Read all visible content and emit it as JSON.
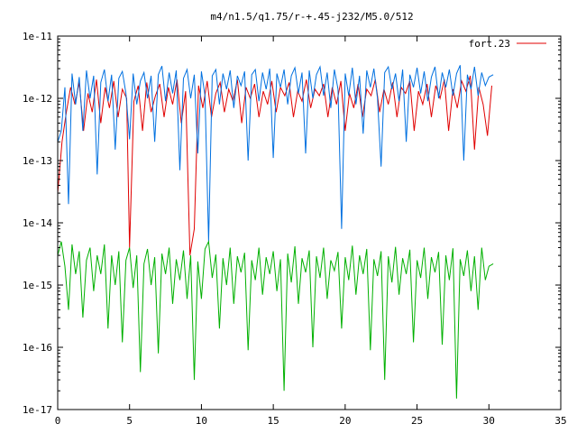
{
  "chart_data": {
    "type": "line",
    "title": "m4/n1.5/q1.75/r-+.45-j232/M5.0/512",
    "xlabel": "",
    "ylabel": "",
    "xlim": [
      0,
      35
    ],
    "ylim": [
      1e-17,
      1e-11
    ],
    "yscale": "log",
    "grid": false,
    "legend": "top-right",
    "x_ticks": [
      0,
      5,
      10,
      15,
      20,
      25,
      30,
      35
    ],
    "x_tick_labels": [
      "0",
      "5",
      "10",
      "15",
      "20",
      "25",
      "30",
      "35"
    ],
    "y_ticks": [
      1e-17,
      1e-16,
      1e-15,
      1e-14,
      1e-13,
      1e-12,
      1e-11
    ],
    "y_tick_labels": [
      "1e-17",
      "1e-16",
      "1e-15",
      "1e-14",
      "1e-13",
      "1e-12",
      "1e-11"
    ],
    "series": [
      {
        "name": "fort.23",
        "color": "#e00000",
        "x": [
          0,
          0.3,
          0.6,
          0.9,
          1.2,
          1.5,
          1.8,
          2.1,
          2.4,
          2.7,
          3.0,
          3.3,
          3.6,
          3.9,
          4.2,
          4.5,
          4.8,
          5.0,
          5.3,
          5.6,
          5.9,
          6.2,
          6.5,
          6.8,
          7.1,
          7.4,
          7.7,
          8.0,
          8.3,
          8.6,
          8.9,
          9.2,
          9.5,
          9.8,
          10.1,
          10.4,
          10.7,
          11.0,
          11.3,
          11.6,
          11.9,
          12.2,
          12.5,
          12.8,
          13.1,
          13.4,
          13.7,
          14.0,
          14.3,
          14.6,
          14.9,
          15.2,
          15.5,
          15.8,
          16.1,
          16.4,
          16.7,
          17.0,
          17.3,
          17.6,
          17.9,
          18.2,
          18.5,
          18.8,
          19.1,
          19.4,
          19.7,
          20.0,
          20.3,
          20.6,
          20.9,
          21.2,
          21.5,
          21.8,
          22.1,
          22.4,
          22.7,
          23.0,
          23.3,
          23.6,
          23.9,
          24.2,
          24.5,
          24.8,
          25.1,
          25.4,
          25.7,
          26.0,
          26.3,
          26.6,
          26.9,
          27.2,
          27.5,
          27.8,
          28.1,
          28.4,
          28.7,
          29.0,
          29.3,
          29.6,
          29.9,
          30.2
        ],
        "y": [
          3e-14,
          2e-13,
          6e-13,
          1.5e-12,
          8e-13,
          1.8e-12,
          3e-13,
          1.2e-12,
          6e-13,
          2e-12,
          4e-13,
          1.5e-12,
          7e-13,
          1.9e-12,
          5e-13,
          1.4e-12,
          1e-12,
          4e-15,
          9e-13,
          1.6e-12,
          3e-13,
          1.8e-12,
          6e-13,
          1.1e-12,
          1.7e-12,
          5e-13,
          1.5e-12,
          8e-13,
          2e-12,
          4e-13,
          1.3e-12,
          3e-15,
          8e-15,
          1.6e-12,
          7e-13,
          1.9e-12,
          5e-13,
          1.2e-12,
          1.8e-12,
          6e-13,
          1.4e-12,
          9e-13,
          2e-12,
          4e-13,
          1.5e-12,
          1e-12,
          1.7e-12,
          5e-13,
          1.3e-12,
          8e-13,
          1.9e-12,
          6e-13,
          1.5e-12,
          1.1e-12,
          1.8e-12,
          5e-13,
          1.3e-12,
          9e-13,
          2e-12,
          7e-13,
          1.4e-12,
          1.1e-12,
          1.7e-12,
          5e-13,
          1.5e-12,
          8e-13,
          1.9e-12,
          3e-13,
          1.2e-12,
          7e-13,
          1.7e-12,
          5e-13,
          1.4e-12,
          1.1e-12,
          2e-12,
          6e-13,
          1.4e-12,
          8e-13,
          1.8e-12,
          5e-13,
          1.5e-12,
          1.2e-12,
          1.9e-12,
          3e-13,
          1.3e-12,
          8e-13,
          1.7e-12,
          5e-13,
          1.6e-12,
          1e-12,
          2e-12,
          3e-13,
          1.4e-12,
          7e-13,
          1.9e-12,
          1.3e-12,
          2.3e-12,
          1.5e-13,
          1.5e-12,
          8e-13,
          2.5e-13,
          1.6e-12
        ]
      },
      {
        "name": "",
        "color": "#0070e0",
        "x": [
          0,
          0.25,
          0.5,
          0.75,
          1.0,
          1.25,
          1.5,
          1.75,
          2.0,
          2.25,
          2.5,
          2.75,
          3.0,
          3.25,
          3.5,
          3.75,
          4.0,
          4.25,
          4.5,
          4.75,
          5.0,
          5.25,
          5.5,
          5.75,
          6.0,
          6.25,
          6.5,
          6.75,
          7.0,
          7.25,
          7.5,
          7.75,
          8.0,
          8.25,
          8.5,
          8.75,
          9.0,
          9.25,
          9.5,
          9.75,
          10.0,
          10.25,
          10.5,
          10.75,
          11.0,
          11.25,
          11.5,
          11.75,
          12.0,
          12.25,
          12.5,
          12.75,
          13.0,
          13.25,
          13.5,
          13.75,
          14.0,
          14.25,
          14.5,
          14.75,
          15.0,
          15.25,
          15.5,
          15.75,
          16.0,
          16.25,
          16.5,
          16.75,
          17.0,
          17.25,
          17.5,
          17.75,
          18.0,
          18.25,
          18.5,
          18.75,
          19.0,
          19.25,
          19.5,
          19.75,
          20.0,
          20.25,
          20.5,
          20.75,
          21.0,
          21.25,
          21.5,
          21.75,
          22.0,
          22.25,
          22.5,
          22.75,
          23.0,
          23.25,
          23.5,
          23.75,
          24.0,
          24.25,
          24.5,
          24.75,
          25.0,
          25.25,
          25.5,
          25.75,
          26.0,
          26.25,
          26.5,
          26.75,
          27.0,
          27.25,
          27.5,
          27.75,
          28.0,
          28.25,
          28.5,
          28.75,
          29.0,
          29.25,
          29.5,
          29.75,
          30.0,
          30.3
        ],
        "y": [
          2e-13,
          3e-13,
          1.5e-12,
          2e-14,
          2.5e-12,
          8e-13,
          2.2e-12,
          3e-13,
          2.8e-12,
          1e-12,
          2.3e-12,
          6e-14,
          1.8e-12,
          2.9e-12,
          9e-13,
          2.4e-12,
          1.5e-13,
          2.1e-12,
          2.7e-12,
          1.2e-12,
          2.2e-13,
          2.5e-12,
          8e-13,
          1.9e-12,
          2.6e-12,
          1e-12,
          2.3e-12,
          2e-13,
          2.4e-12,
          3.3e-12,
          9e-13,
          2.6e-12,
          1.2e-12,
          2.8e-12,
          7e-14,
          2.1e-12,
          2.9e-12,
          1e-12,
          2.4e-12,
          1.3e-13,
          2.7e-12,
          1.1e-12,
          5e-15,
          2.3e-12,
          2.9e-12,
          8e-13,
          2.5e-12,
          1.4e-12,
          2.8e-12,
          7e-13,
          2.3e-12,
          1.6e-12,
          2.7e-12,
          1e-13,
          2.4e-12,
          2.9e-12,
          9e-13,
          2.6e-12,
          1.4e-12,
          3e-12,
          1.1e-13,
          2.5e-12,
          1.5e-12,
          2.9e-12,
          8e-13,
          2.3e-12,
          3.1e-12,
          1.2e-12,
          2.6e-12,
          1.3e-13,
          2.8e-12,
          1e-12,
          2.4e-12,
          3.2e-12,
          1.1e-12,
          2.6e-12,
          7e-13,
          2.9e-12,
          1.4e-12,
          8e-15,
          2.5e-12,
          1.1e-12,
          3.1e-12,
          8e-13,
          2.3e-12,
          2.7e-13,
          2.8e-12,
          1.5e-12,
          3e-12,
          1e-12,
          8e-14,
          2.6e-12,
          3.2e-12,
          1.4e-12,
          2.5e-12,
          9e-13,
          2.9e-12,
          2e-13,
          2.4e-12,
          1.5e-12,
          3.1e-12,
          1.2e-12,
          2.7e-12,
          9e-13,
          2.2e-12,
          3.2e-12,
          1e-12,
          2.6e-12,
          1.5e-12,
          2.9e-12,
          1.1e-12,
          2.5e-12,
          3.4e-12,
          1e-13,
          2.4e-12,
          1.4e-12,
          3.2e-12,
          1.1e-12,
          2.6e-12,
          1.6e-12,
          2.2e-12,
          2.4e-12
        ]
      },
      {
        "name": "",
        "color": "#00b000",
        "x": [
          0,
          0.25,
          0.5,
          0.75,
          1.0,
          1.25,
          1.5,
          1.75,
          2.0,
          2.25,
          2.5,
          2.75,
          3.0,
          3.25,
          3.5,
          3.75,
          4.0,
          4.25,
          4.5,
          4.75,
          5.0,
          5.25,
          5.5,
          5.75,
          6.0,
          6.25,
          6.5,
          6.75,
          7.0,
          7.25,
          7.5,
          7.75,
          8.0,
          8.25,
          8.5,
          8.75,
          9.0,
          9.25,
          9.5,
          9.75,
          10.0,
          10.25,
          10.5,
          10.75,
          11.0,
          11.25,
          11.5,
          11.75,
          12.0,
          12.25,
          12.5,
          12.75,
          13.0,
          13.25,
          13.5,
          13.75,
          14.0,
          14.25,
          14.5,
          14.75,
          15.0,
          15.25,
          15.5,
          15.75,
          16.0,
          16.25,
          16.5,
          16.75,
          17.0,
          17.25,
          17.5,
          17.75,
          18.0,
          18.25,
          18.5,
          18.75,
          19.0,
          19.25,
          19.5,
          19.75,
          20.0,
          20.25,
          20.5,
          20.75,
          21.0,
          21.25,
          21.5,
          21.75,
          22.0,
          22.25,
          22.5,
          22.75,
          23.0,
          23.25,
          23.5,
          23.75,
          24.0,
          24.25,
          24.5,
          24.75,
          25.0,
          25.25,
          25.5,
          25.75,
          26.0,
          26.25,
          26.5,
          26.75,
          27.0,
          27.25,
          27.5,
          27.75,
          28.0,
          28.25,
          28.5,
          28.75,
          29.0,
          29.25,
          29.5,
          29.75,
          30.0,
          30.3
        ],
        "y": [
          3e-15,
          5e-15,
          2e-15,
          4e-16,
          4.5e-15,
          1.5e-15,
          3.5e-15,
          3e-16,
          2.5e-15,
          4e-15,
          8e-16,
          3e-15,
          1.5e-15,
          4.5e-15,
          2e-16,
          3e-15,
          1e-15,
          3.5e-15,
          1.2e-16,
          2.5e-15,
          4e-15,
          9e-16,
          3e-15,
          4e-17,
          2.2e-15,
          3.8e-15,
          1e-15,
          2.8e-15,
          8e-17,
          3.2e-15,
          1.5e-15,
          4e-15,
          5e-16,
          2.6e-15,
          1.2e-15,
          3.6e-15,
          6e-16,
          3e-15,
          3e-17,
          2.4e-15,
          6e-16,
          3.8e-15,
          5e-15,
          1.3e-15,
          3.1e-15,
          2e-16,
          2.7e-15,
          1e-15,
          4e-15,
          5e-16,
          2.9e-15,
          1.6e-15,
          3.3e-15,
          9e-17,
          2.5e-15,
          1.2e-15,
          4e-15,
          7e-16,
          2.8e-15,
          1.5e-15,
          3.5e-15,
          8e-16,
          2.6e-15,
          2e-17,
          3.2e-15,
          1.1e-15,
          4.2e-15,
          5e-16,
          2.7e-15,
          1.6e-15,
          3.6e-15,
          1e-16,
          2.9e-15,
          1.3e-15,
          4e-15,
          6e-16,
          2.5e-15,
          1.7e-15,
          3.4e-15,
          2e-16,
          2.8e-15,
          1.2e-15,
          4.3e-15,
          7e-16,
          3e-15,
          1.5e-15,
          3.8e-15,
          9e-17,
          2.6e-15,
          1.4e-15,
          3.5e-15,
          3e-17,
          2.9e-15,
          1.1e-15,
          4.1e-15,
          7e-16,
          2.7e-15,
          1.5e-15,
          3.7e-15,
          1.2e-16,
          2.5e-15,
          1.3e-15,
          4e-15,
          6e-16,
          2.8e-15,
          1.6e-15,
          3.4e-15,
          1.1e-16,
          3e-15,
          1.2e-15,
          3.9e-15,
          1.5e-17,
          2.6e-15,
          1.4e-15,
          3.6e-15,
          8e-16,
          2.9e-15,
          4e-16,
          4e-15,
          1.2e-15,
          2e-15,
          2.2e-15
        ]
      }
    ]
  }
}
